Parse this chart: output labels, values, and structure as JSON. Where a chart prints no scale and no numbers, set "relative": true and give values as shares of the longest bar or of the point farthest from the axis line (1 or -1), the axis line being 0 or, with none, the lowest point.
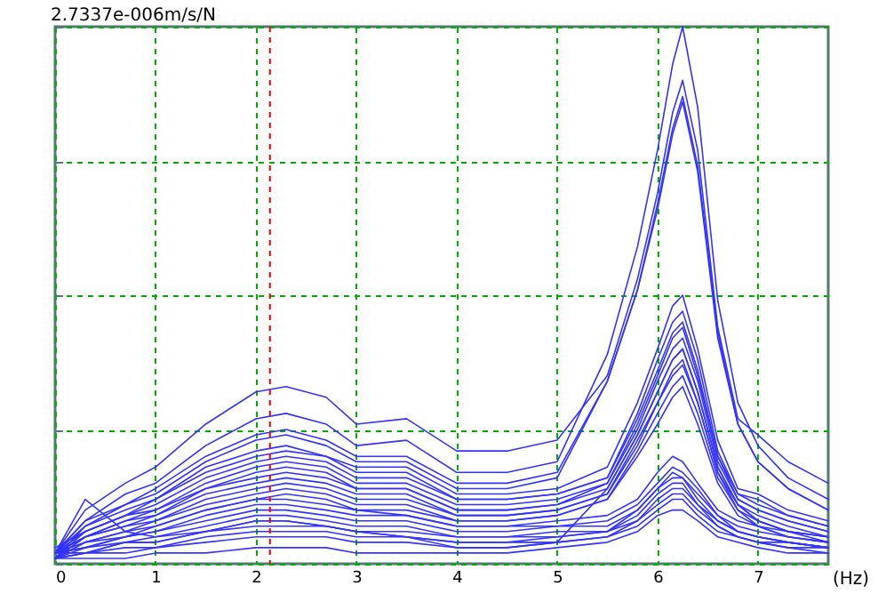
{
  "chart_data": {
    "type": "line",
    "xlabel": "(Hz)",
    "ylabel": "2.7337e-006m/s/N",
    "relative": true,
    "grid": true,
    "line_style": "solid",
    "xlim": [
      0,
      7.7
    ],
    "xticks": [
      0,
      1,
      2,
      3,
      4,
      5,
      6,
      7
    ],
    "x": [
      0,
      0.3,
      0.7,
      1,
      1.5,
      2,
      2.3,
      2.7,
      3,
      3.5,
      4,
      4.5,
      5,
      5.5,
      5.8,
      6,
      6.15,
      6.25,
      6.4,
      6.6,
      6.8,
      7,
      7.3,
      7.7
    ],
    "ref_lines": [
      {
        "axis": "x",
        "value": 2.14,
        "color": "#ff0000",
        "line_style": "dashed"
      }
    ],
    "series": [
      {
        "color": "#3333ff",
        "values": [
          0.02,
          0.1,
          0.15,
          0.18,
          0.26,
          0.32,
          0.33,
          0.31,
          0.26,
          0.27,
          0.21,
          0.21,
          0.23,
          0.35,
          0.53,
          0.69,
          0.84,
          0.9,
          0.77,
          0.44,
          0.27,
          0.24,
          0.19,
          0.15
        ]
      },
      {
        "color": "#3333ff",
        "values": [
          0.02,
          0.08,
          0.13,
          0.15,
          0.22,
          0.27,
          0.28,
          0.26,
          0.22,
          0.23,
          0.17,
          0.17,
          0.19,
          0.39,
          0.59,
          0.77,
          0.93,
          1.0,
          0.85,
          0.49,
          0.3,
          0.22,
          0.16,
          0.12
        ]
      },
      {
        "color": "#3333ff",
        "values": [
          0.02,
          0.08,
          0.11,
          0.14,
          0.2,
          0.24,
          0.25,
          0.23,
          0.2,
          0.2,
          0.15,
          0.15,
          0.17,
          0.34,
          0.51,
          0.67,
          0.81,
          0.87,
          0.74,
          0.43,
          0.26,
          0.19,
          0.14,
          0.1
        ]
      },
      {
        "color": "#3333ff",
        "values": [
          0.01,
          0.07,
          0.11,
          0.13,
          0.19,
          0.23,
          0.24,
          0.22,
          0.19,
          0.19,
          0.14,
          0.14,
          0.16,
          0.34,
          0.51,
          0.66,
          0.8,
          0.86,
          0.73,
          0.42,
          0.26,
          0.19,
          0.14,
          0.1
        ]
      },
      {
        "color": "#3333ff",
        "values": [
          0.02,
          0.07,
          0.1,
          0.12,
          0.18,
          0.21,
          0.22,
          0.2,
          0.18,
          0.18,
          0.13,
          0.13,
          0.14,
          0.18,
          0.3,
          0.4,
          0.48,
          0.5,
          0.4,
          0.23,
          0.14,
          0.13,
          0.1,
          0.08
        ]
      },
      {
        "color": "#3333ff",
        "values": [
          0.01,
          0.06,
          0.09,
          0.12,
          0.17,
          0.2,
          0.21,
          0.2,
          0.17,
          0.17,
          0.12,
          0.12,
          0.13,
          0.16,
          0.28,
          0.38,
          0.45,
          0.47,
          0.38,
          0.21,
          0.13,
          0.12,
          0.09,
          0.07
        ]
      },
      {
        "color": "#3333ff",
        "values": [
          0.03,
          0.06,
          0.09,
          0.11,
          0.16,
          0.19,
          0.2,
          0.19,
          0.16,
          0.16,
          0.12,
          0.12,
          0.13,
          0.16,
          0.27,
          0.36,
          0.43,
          0.45,
          0.36,
          0.2,
          0.13,
          0.11,
          0.09,
          0.07
        ]
      },
      {
        "color": "#3333ff",
        "values": [
          0.02,
          0.06,
          0.09,
          0.1,
          0.15,
          0.18,
          0.19,
          0.18,
          0.15,
          0.15,
          0.11,
          0.11,
          0.12,
          0.15,
          0.26,
          0.35,
          0.42,
          0.44,
          0.35,
          0.2,
          0.12,
          0.1,
          0.08,
          0.06
        ]
      },
      {
        "color": "#3333ff",
        "values": [
          0.01,
          0.05,
          0.08,
          0.1,
          0.14,
          0.17,
          0.18,
          0.17,
          0.14,
          0.14,
          0.1,
          0.1,
          0.11,
          0.15,
          0.25,
          0.34,
          0.4,
          0.42,
          0.34,
          0.19,
          0.12,
          0.1,
          0.08,
          0.06
        ]
      },
      {
        "color": "#3333ff",
        "values": [
          0.02,
          0.05,
          0.08,
          0.09,
          0.14,
          0.16,
          0.17,
          0.16,
          0.14,
          0.14,
          0.1,
          0.1,
          0.11,
          0.14,
          0.24,
          0.32,
          0.38,
          0.4,
          0.32,
          0.18,
          0.11,
          0.09,
          0.07,
          0.05
        ]
      },
      {
        "color": "#3333ff",
        "values": [
          0.01,
          0.05,
          0.07,
          0.09,
          0.13,
          0.15,
          0.16,
          0.15,
          0.13,
          0.13,
          0.09,
          0.09,
          0.1,
          0.13,
          0.23,
          0.3,
          0.36,
          0.38,
          0.3,
          0.17,
          0.11,
          0.08,
          0.06,
          0.05
        ]
      },
      {
        "color": "#3333ff",
        "values": [
          0.02,
          0.05,
          0.07,
          0.08,
          0.12,
          0.14,
          0.15,
          0.14,
          0.12,
          0.12,
          0.09,
          0.09,
          0.1,
          0.13,
          0.22,
          0.3,
          0.35,
          0.37,
          0.3,
          0.17,
          0.1,
          0.08,
          0.06,
          0.05
        ]
      },
      {
        "color": "#3333ff",
        "values": [
          0.01,
          0.04,
          0.06,
          0.08,
          0.11,
          0.13,
          0.14,
          0.13,
          0.11,
          0.11,
          0.08,
          0.08,
          0.09,
          0.12,
          0.21,
          0.28,
          0.33,
          0.35,
          0.28,
          0.16,
          0.1,
          0.07,
          0.05,
          0.04
        ]
      },
      {
        "color": "#3333ff",
        "values": [
          0.02,
          0.04,
          0.06,
          0.07,
          0.1,
          0.12,
          0.13,
          0.12,
          0.1,
          0.1,
          0.08,
          0.08,
          0.09,
          0.12,
          0.2,
          0.26,
          0.31,
          0.33,
          0.26,
          0.15,
          0.09,
          0.07,
          0.05,
          0.04
        ]
      },
      {
        "color": "#3333ff",
        "values": [
          0.01,
          0.04,
          0.05,
          0.07,
          0.1,
          0.12,
          0.12,
          0.11,
          0.1,
          0.09,
          0.07,
          0.07,
          0.08,
          0.09,
          0.12,
          0.17,
          0.2,
          0.19,
          0.15,
          0.1,
          0.08,
          0.07,
          0.06,
          0.05
        ]
      },
      {
        "color": "#3333ff",
        "values": [
          0.02,
          0.03,
          0.05,
          0.06,
          0.09,
          0.11,
          0.11,
          0.1,
          0.09,
          0.09,
          0.07,
          0.07,
          0.07,
          0.08,
          0.11,
          0.15,
          0.18,
          0.17,
          0.14,
          0.09,
          0.07,
          0.06,
          0.05,
          0.04
        ]
      },
      {
        "color": "#3333ff",
        "values": [
          0.01,
          0.03,
          0.05,
          0.06,
          0.08,
          0.1,
          0.1,
          0.09,
          0.08,
          0.08,
          0.06,
          0.06,
          0.07,
          0.07,
          0.1,
          0.14,
          0.17,
          0.16,
          0.13,
          0.09,
          0.06,
          0.05,
          0.04,
          0.03
        ]
      },
      {
        "color": "#3333ff",
        "values": [
          0.02,
          0.03,
          0.04,
          0.05,
          0.07,
          0.09,
          0.09,
          0.08,
          0.07,
          0.07,
          0.05,
          0.05,
          0.06,
          0.06,
          0.1,
          0.14,
          0.16,
          0.16,
          0.12,
          0.08,
          0.06,
          0.05,
          0.04,
          0.03
        ]
      },
      {
        "color": "#3333ff",
        "values": [
          0.01,
          0.02,
          0.04,
          0.04,
          0.06,
          0.08,
          0.08,
          0.07,
          0.06,
          0.06,
          0.05,
          0.05,
          0.05,
          0.06,
          0.09,
          0.13,
          0.15,
          0.15,
          0.11,
          0.08,
          0.06,
          0.05,
          0.04,
          0.03
        ]
      },
      {
        "color": "#3333ff",
        "values": [
          0.02,
          0.12,
          0.06,
          0.05,
          0.06,
          0.07,
          0.07,
          0.07,
          0.06,
          0.05,
          0.04,
          0.04,
          0.05,
          0.06,
          0.08,
          0.12,
          0.14,
          0.14,
          0.11,
          0.07,
          0.05,
          0.04,
          0.04,
          0.03
        ]
      },
      {
        "color": "#3333ff",
        "values": [
          0.01,
          0.02,
          0.03,
          0.03,
          0.05,
          0.06,
          0.06,
          0.06,
          0.05,
          0.05,
          0.04,
          0.04,
          0.04,
          0.05,
          0.08,
          0.11,
          0.13,
          0.13,
          0.1,
          0.07,
          0.05,
          0.04,
          0.03,
          0.03
        ]
      },
      {
        "color": "#3333ff",
        "values": [
          0.02,
          0.02,
          0.02,
          0.03,
          0.04,
          0.05,
          0.05,
          0.05,
          0.04,
          0.04,
          0.03,
          0.03,
          0.04,
          0.05,
          0.07,
          0.1,
          0.12,
          0.12,
          0.09,
          0.06,
          0.05,
          0.04,
          0.03,
          0.02
        ]
      },
      {
        "color": "#3333ff",
        "values": [
          0.01,
          0.01,
          0.01,
          0.02,
          0.02,
          0.03,
          0.03,
          0.03,
          0.02,
          0.02,
          0.02,
          0.02,
          0.03,
          0.04,
          0.06,
          0.09,
          0.1,
          0.1,
          0.08,
          0.05,
          0.04,
          0.03,
          0.02,
          0.02
        ]
      },
      {
        "color": "#3333ff",
        "values": [
          0.01,
          0.02,
          0.04,
          0.04,
          0.06,
          0.08,
          0.08,
          0.07,
          0.06,
          0.05,
          0.03,
          0.03,
          0.04,
          0.14,
          0.24,
          0.32,
          0.38,
          0.4,
          0.32,
          0.18,
          0.11,
          0.08,
          0.06,
          0.04
        ]
      }
    ]
  }
}
